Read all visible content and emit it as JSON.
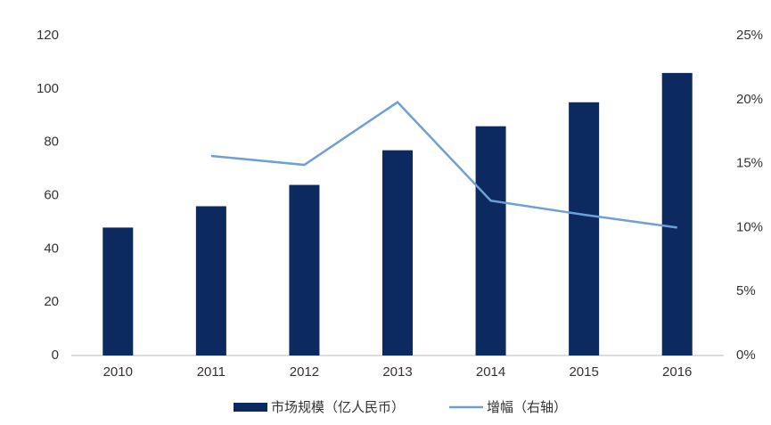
{
  "chart_data": {
    "type": "bar-line",
    "categories": [
      "2010",
      "2011",
      "2012",
      "2013",
      "2014",
      "2015",
      "2016"
    ],
    "series": [
      {
        "name": "市场规模（亿人民币）",
        "type": "bar",
        "color": "#0c2a5f",
        "values": [
          48,
          56,
          64,
          77,
          86,
          95,
          106
        ]
      },
      {
        "name": "增幅（右轴）",
        "type": "line",
        "axis": "y2",
        "color": "#6f9fd8",
        "values": [
          null,
          15.6,
          14.9,
          19.8,
          12.1,
          11.0,
          10.0
        ]
      }
    ],
    "ylim": [
      0,
      120
    ],
    "yticks": [
      0,
      20,
      40,
      60,
      80,
      100,
      120
    ],
    "y2lim": [
      0,
      25
    ],
    "y2ticks": [
      {
        "value": 0,
        "label": "0%"
      },
      {
        "value": 5,
        "label": "5%"
      },
      {
        "value": 10,
        "label": "10%"
      },
      {
        "value": 15,
        "label": "15%"
      },
      {
        "value": 20,
        "label": "20%"
      },
      {
        "value": 25,
        "label": "25%"
      }
    ],
    "grid": false
  }
}
